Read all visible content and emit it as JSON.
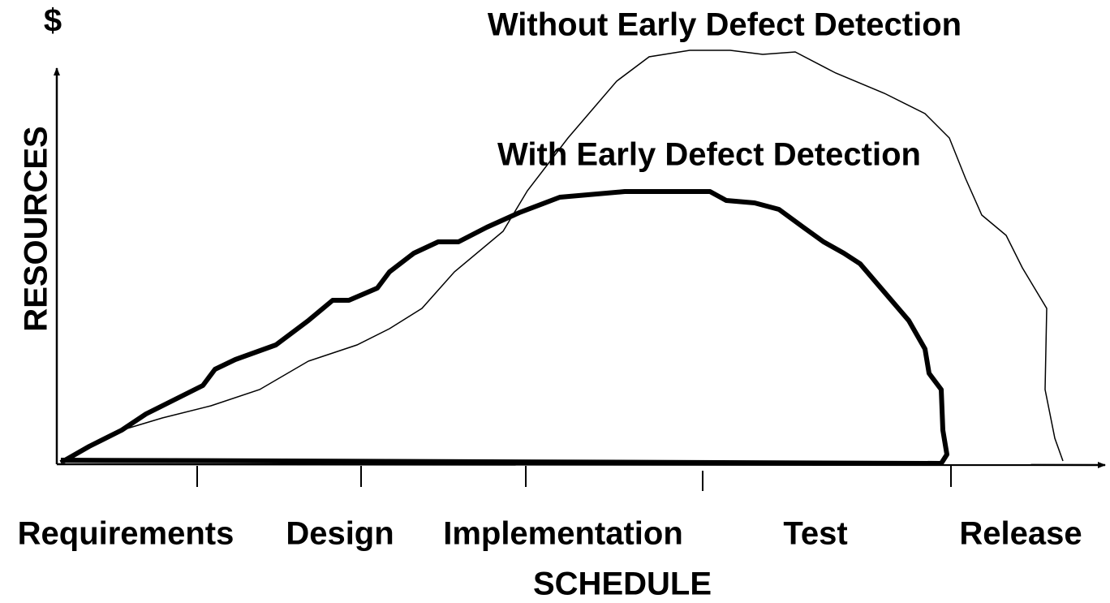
{
  "header": {
    "currency": "$",
    "without_label": "Without Early Defect Detection",
    "with_label": "With Early Defect Detection"
  },
  "axes": {
    "y_label": "RESOURCES",
    "x_label": "SCHEDULE"
  },
  "phases": [
    "Requirements",
    "Design",
    "Implementation",
    "Test",
    "Release"
  ]
}
